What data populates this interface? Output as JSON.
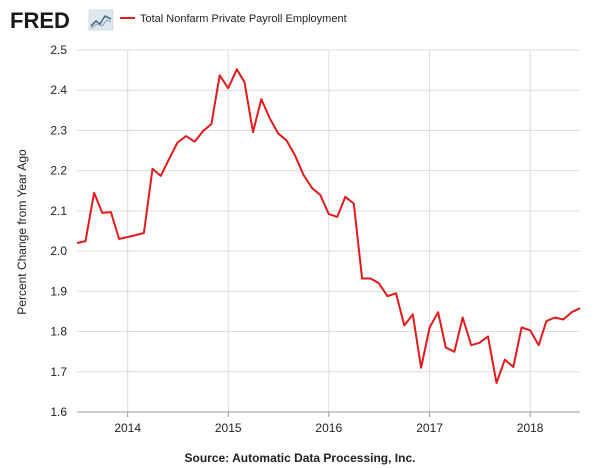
{
  "logo": {
    "text": "FRED",
    "icon": "fred-chart-logo-icon"
  },
  "source": "Source: Automatic Data Processing, Inc.",
  "chart_data": {
    "type": "line",
    "title": "",
    "ylabel": "Percent Change from Year Ago",
    "xlabel": "",
    "ylim": [
      1.6,
      2.5
    ],
    "xlim": [
      "2013-07-01",
      "2018-07-01"
    ],
    "yticks": [
      1.6,
      1.7,
      1.8,
      1.9,
      2.0,
      2.1,
      2.2,
      2.3,
      2.4,
      2.5
    ],
    "ytick_labels": [
      "1.6",
      "1.7",
      "1.8",
      "1.9",
      "2.0",
      "2.1",
      "2.2",
      "2.3",
      "2.4",
      "2.5"
    ],
    "xticks": [
      "2014-01-01",
      "2015-01-01",
      "2016-01-01",
      "2017-01-01",
      "2018-01-01"
    ],
    "xtick_labels": [
      "2014",
      "2015",
      "2016",
      "2017",
      "2018"
    ],
    "grid": true,
    "legend_position": "top",
    "series": [
      {
        "name": "Total Nonfarm Private Payroll Employment",
        "color": "#e31a1c",
        "x": [
          "2013-07-01",
          "2013-08-01",
          "2013-09-01",
          "2013-10-01",
          "2013-11-01",
          "2013-12-01",
          "2014-01-01",
          "2014-02-01",
          "2014-03-01",
          "2014-04-01",
          "2014-05-01",
          "2014-06-01",
          "2014-07-01",
          "2014-08-01",
          "2014-09-01",
          "2014-10-01",
          "2014-11-01",
          "2014-12-01",
          "2015-01-01",
          "2015-02-01",
          "2015-03-01",
          "2015-04-01",
          "2015-05-01",
          "2015-06-01",
          "2015-07-01",
          "2015-08-01",
          "2015-09-01",
          "2015-10-01",
          "2015-11-01",
          "2015-12-01",
          "2016-01-01",
          "2016-02-01",
          "2016-03-01",
          "2016-04-01",
          "2016-05-01",
          "2016-06-01",
          "2016-07-01",
          "2016-08-01",
          "2016-09-01",
          "2016-10-01",
          "2016-11-01",
          "2016-12-01",
          "2017-01-01",
          "2017-02-01",
          "2017-03-01",
          "2017-04-01",
          "2017-05-01",
          "2017-06-01",
          "2017-07-01",
          "2017-08-01",
          "2017-09-01",
          "2017-10-01",
          "2017-11-01",
          "2017-12-01",
          "2018-01-01",
          "2018-02-01",
          "2018-03-01",
          "2018-04-01",
          "2018-05-01",
          "2018-06-01",
          "2018-07-01"
        ],
        "values": [
          2.02,
          2.025,
          2.145,
          2.095,
          2.097,
          2.03,
          2.035,
          2.04,
          2.045,
          2.205,
          2.187,
          2.23,
          2.27,
          2.286,
          2.272,
          2.298,
          2.316,
          2.437,
          2.405,
          2.452,
          2.42,
          2.296,
          2.378,
          2.33,
          2.293,
          2.275,
          2.237,
          2.19,
          2.157,
          2.14,
          2.092,
          2.085,
          2.135,
          2.118,
          1.932,
          1.932,
          1.92,
          1.888,
          1.895,
          1.815,
          1.843,
          1.71,
          1.81,
          1.848,
          1.76,
          1.75,
          1.835,
          1.766,
          1.772,
          1.788,
          1.672,
          1.73,
          1.712,
          1.81,
          1.803,
          1.766,
          1.826,
          1.835,
          1.83,
          1.848,
          1.858
        ]
      }
    ]
  }
}
